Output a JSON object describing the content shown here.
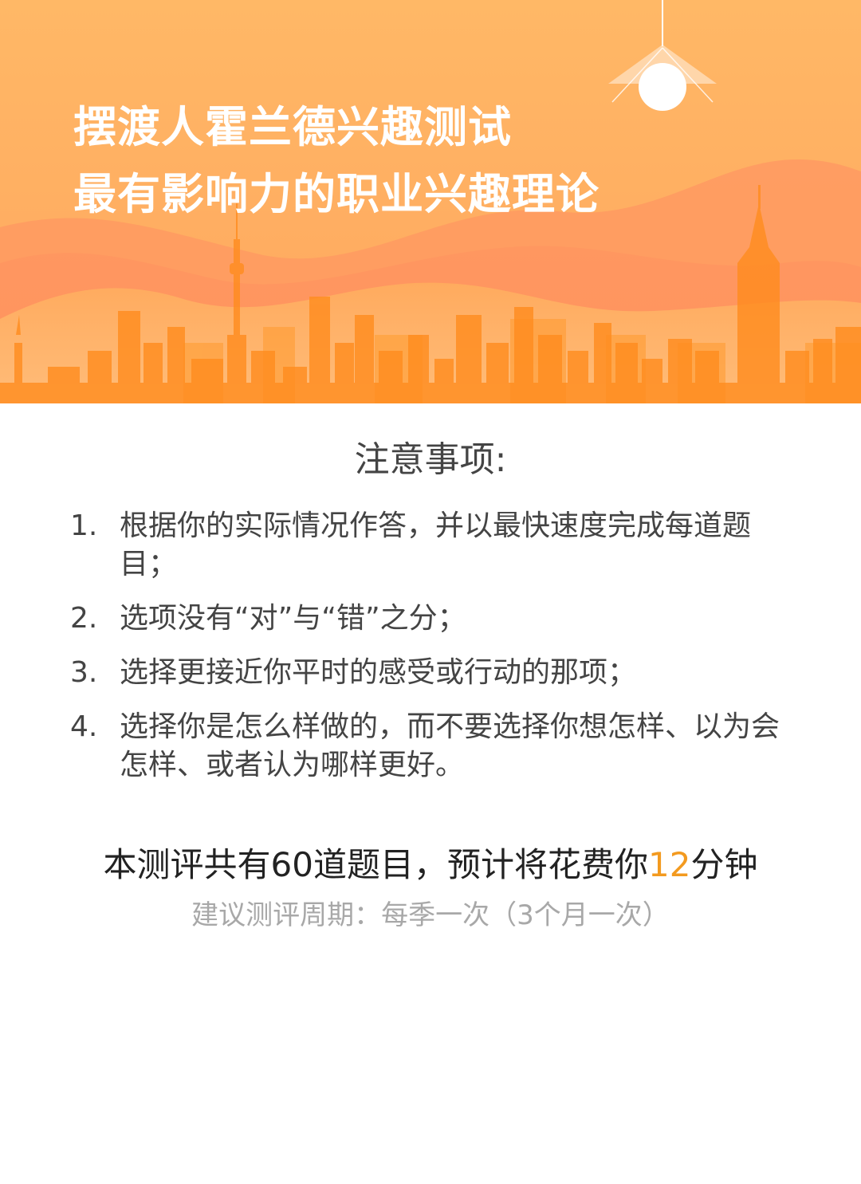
{
  "banner": {
    "title_line1": "摆渡人霍兰德兴趣测试",
    "title_line2": "最有影响力的职业兴趣理论"
  },
  "notice": {
    "title": "注意事项:",
    "rules": [
      {
        "num": "1.",
        "text": "根据你的实际情况作答，并以最快速度完成每道题目；"
      },
      {
        "num": "2.",
        "text": "选项没有“对”与“错”之分；"
      },
      {
        "num": "3.",
        "text": "选择更接近你平时的感受或行动的那项；"
      },
      {
        "num": "4.",
        "text": "选择你是怎么样做的，而不要选择你想怎样、以为会怎样、或者认为哪样更好。"
      }
    ]
  },
  "summary": {
    "prefix": "本测评共有60道题目，预计将花费你",
    "minutes": "12",
    "suffix": "分钟",
    "sub": "建议测评周期：每季一次（3个月一次）"
  },
  "colors": {
    "banner_top": "#ffb463",
    "banner_bottom": "#ff9a57",
    "skyline": "#ff8a1a",
    "highlight": "#f39a1f"
  },
  "icons": [
    "lamp-icon"
  ]
}
